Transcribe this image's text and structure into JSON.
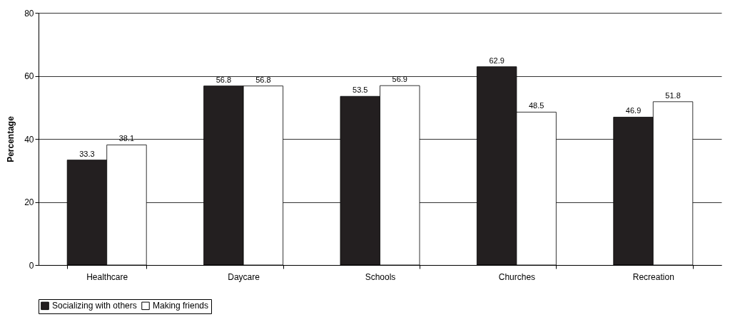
{
  "chart_data": {
    "type": "bar",
    "ylabel": "Percentage",
    "categories": [
      "Healthcare",
      "Daycare",
      "Schools",
      "Churches",
      "Recreation"
    ],
    "series": [
      {
        "name": "Socializing with others",
        "color": "#231f20",
        "values": [
          33.3,
          56.8,
          53.5,
          62.9,
          46.9
        ]
      },
      {
        "name": "Making friends",
        "color": "#ffffff",
        "values": [
          38.1,
          56.8,
          56.9,
          48.5,
          51.8
        ]
      }
    ],
    "ylim": [
      0,
      80
    ],
    "yticks": [
      0,
      20,
      40,
      60,
      80
    ],
    "grid": "y",
    "legend": "bottom",
    "data_labels": true
  }
}
